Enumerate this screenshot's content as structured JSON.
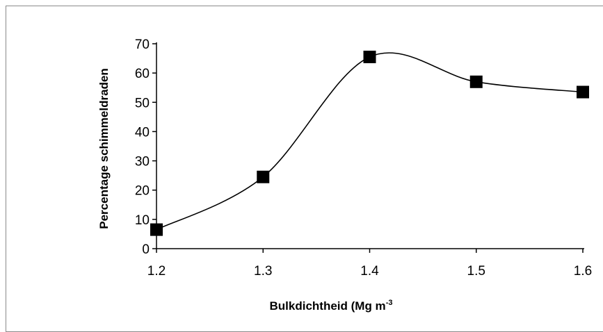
{
  "chart_data": {
    "type": "line",
    "title": "",
    "xlabel": "Bulkdichtheid (Mg m",
    "xlabel_superscript": "-3",
    "ylabel": "Percentage schimmeldraden",
    "x": [
      1.2,
      1.3,
      1.4,
      1.5,
      1.6
    ],
    "x_tick_labels": [
      "1.2",
      "1.3",
      "1.4",
      "1.5",
      "1.6"
    ],
    "y_ticks": [
      0,
      10,
      20,
      30,
      40,
      50,
      60,
      70
    ],
    "y_tick_labels": [
      "0",
      "10",
      "20",
      "30",
      "40",
      "50",
      "60",
      "70"
    ],
    "xlim": [
      1.2,
      1.6
    ],
    "ylim": [
      0,
      70
    ],
    "series": [
      {
        "values": [
          6.5,
          24.5,
          65.5,
          57,
          53.5
        ]
      }
    ],
    "marker": "square",
    "smooth": true,
    "grid": false,
    "legend": "none",
    "colors": {
      "line": "#000000",
      "marker": "#000000",
      "frame": "#8a8a8a"
    }
  }
}
